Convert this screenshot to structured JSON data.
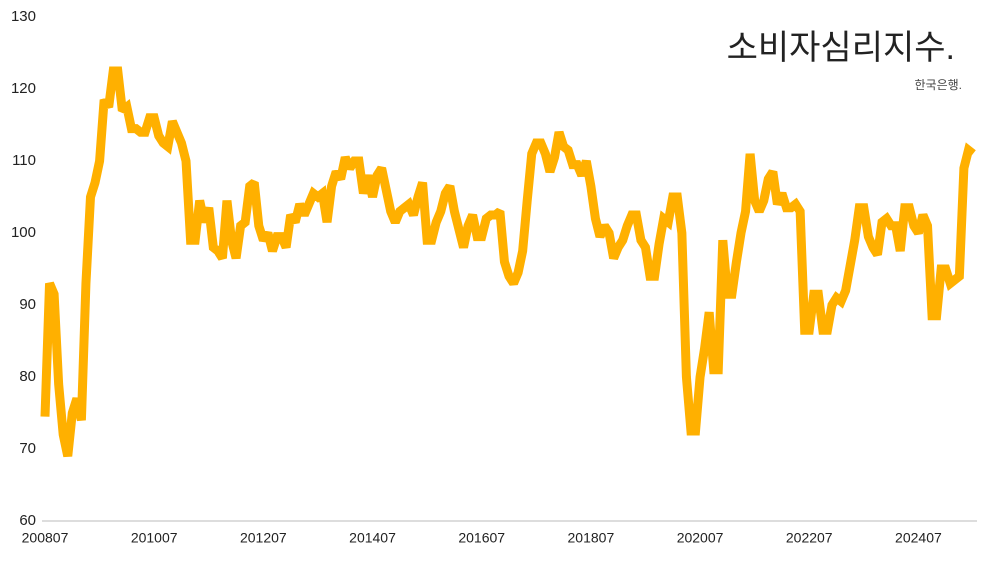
{
  "chart_data": {
    "type": "line",
    "title": "소비자심리지수.",
    "subtitle": "한국은행.",
    "categories": [
      "200807",
      null,
      null,
      null,
      null,
      null,
      null,
      null,
      null,
      null,
      null,
      null,
      null,
      null,
      null,
      null,
      null,
      null,
      null,
      null,
      null,
      null,
      null,
      null,
      "201007",
      null,
      null,
      null,
      null,
      null,
      null,
      null,
      null,
      null,
      null,
      null,
      null,
      null,
      null,
      null,
      null,
      null,
      null,
      null,
      null,
      null,
      null,
      null,
      "201207",
      null,
      null,
      null,
      null,
      null,
      null,
      null,
      null,
      null,
      null,
      null,
      null,
      null,
      null,
      null,
      null,
      null,
      null,
      null,
      null,
      null,
      null,
      null,
      "201407",
      null,
      null,
      null,
      null,
      null,
      null,
      null,
      null,
      null,
      null,
      null,
      null,
      null,
      null,
      null,
      null,
      null,
      null,
      null,
      null,
      null,
      null,
      null,
      "201607",
      null,
      null,
      null,
      null,
      null,
      null,
      null,
      null,
      null,
      null,
      null,
      null,
      null,
      null,
      null,
      null,
      null,
      null,
      null,
      null,
      null,
      null,
      null,
      "201807",
      null,
      null,
      null,
      null,
      null,
      null,
      null,
      null,
      null,
      null,
      null,
      null,
      null,
      null,
      null,
      null,
      null,
      null,
      null,
      null,
      null,
      null,
      null,
      "202007",
      null,
      null,
      null,
      null,
      null,
      null,
      null,
      null,
      null,
      null,
      null,
      null,
      null,
      null,
      null,
      null,
      null,
      null,
      null,
      null,
      null,
      null,
      null,
      "202207",
      null,
      null,
      null,
      null,
      null,
      null,
      null,
      null,
      null,
      null,
      null,
      null,
      null,
      null,
      null,
      null,
      null,
      null,
      null,
      null,
      null,
      null,
      null,
      "202407",
      null,
      null,
      null,
      null,
      null,
      null,
      null,
      null,
      null,
      null,
      null,
      null
    ],
    "values": [
      74.5,
      93,
      91.5,
      79,
      72,
      69,
      75,
      77,
      74,
      93,
      105,
      107,
      110,
      118.5,
      117.5,
      122.5,
      122.5,
      117,
      117.5,
      114.5,
      114.5,
      114,
      114,
      116,
      116,
      113.5,
      112.5,
      112,
      115.5,
      114,
      112.5,
      110,
      99,
      99,
      104.5,
      101.5,
      103.5,
      98,
      97.5,
      96.5,
      104.5,
      99,
      96.5,
      101,
      101.5,
      106.5,
      107,
      101,
      99,
      100,
      97.5,
      99.5,
      99.5,
      98,
      102.5,
      101.5,
      104,
      102.5,
      104,
      105.5,
      105,
      105.5,
      101.5,
      106.5,
      108.5,
      107.5,
      110.5,
      109,
      110,
      110,
      105.5,
      108,
      105,
      108,
      109,
      106,
      103,
      101.5,
      103,
      103.5,
      104,
      102.5,
      105,
      107,
      99,
      99,
      101.5,
      103,
      105.5,
      106.5,
      103,
      100.5,
      98,
      101,
      102.5,
      99.5,
      99.5,
      102,
      102.5,
      102.5,
      103,
      96,
      94,
      93,
      94.5,
      97.5,
      104.5,
      111,
      112.5,
      112.5,
      111,
      108.5,
      110.5,
      114,
      112,
      111.5,
      109.5,
      109.5,
      108,
      110,
      106.5,
      102,
      99.5,
      101,
      100,
      96.5,
      98,
      99,
      101,
      102.5,
      102.5,
      99,
      98,
      94,
      94,
      98.5,
      102,
      101.5,
      105,
      105,
      100,
      80,
      72.5,
      72.5,
      80,
      84,
      89,
      81,
      81,
      99,
      91.5,
      91.5,
      96,
      100,
      103,
      111,
      104.5,
      103,
      104.5,
      107.5,
      108.5,
      104,
      105.5,
      103.5,
      103.5,
      104,
      103,
      86.5,
      86.5,
      91.5,
      91.5,
      86.5,
      86.5,
      90,
      91,
      90.5,
      92,
      95.5,
      99,
      103.5,
      103.5,
      99.5,
      98,
      97,
      101.5,
      102,
      101,
      101,
      97.5,
      103.5,
      103.5,
      101,
      100,
      102.5,
      101,
      88.5,
      88.5,
      95,
      95,
      93,
      93.5,
      94,
      109,
      111.5,
      111
    ],
    "color": "#ffb000",
    "ylim": [
      60,
      130
    ],
    "yticks": [
      60,
      70,
      80,
      90,
      100,
      110,
      120,
      130
    ],
    "grid": false
  }
}
